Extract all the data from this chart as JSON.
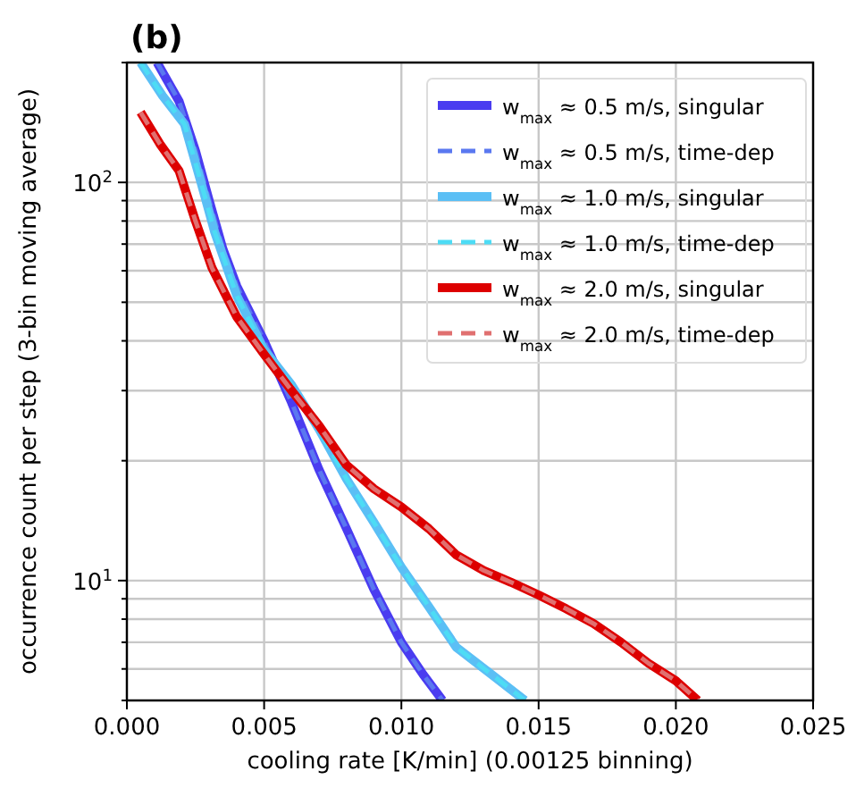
{
  "chart_data": {
    "type": "line",
    "title": "(b)",
    "xlabel": "cooling rate [K/min] (0.00125 binning)",
    "ylabel": "occurrence count per step (3-bin moving average)",
    "log": "y",
    "grid": true,
    "legend": "top right",
    "marker": "none",
    "xlim": [
      0,
      0.025
    ],
    "xticks": [
      {
        "value": 0,
        "label": "0.000"
      },
      {
        "value": 0.005,
        "label": "0.005"
      },
      {
        "value": 0.01,
        "label": "0.010"
      },
      {
        "value": 0.015,
        "label": "0.015"
      },
      {
        "value": 0.02,
        "label": "0.020"
      },
      {
        "value": 0.025,
        "label": "0.025"
      }
    ],
    "ylim": [
      5,
      200
    ],
    "yticks": [
      {
        "value": 5,
        "label": null
      },
      {
        "value": 6,
        "label": null
      },
      {
        "value": 7,
        "label": null
      },
      {
        "value": 8,
        "label": null
      },
      {
        "value": 9,
        "label": null
      },
      {
        "value": 10,
        "label": "10$^{1}$"
      },
      {
        "value": 20,
        "label": null
      },
      {
        "value": 30,
        "label": null
      },
      {
        "value": 40,
        "label": null
      },
      {
        "value": 50,
        "label": null
      },
      {
        "value": 60,
        "label": null
      },
      {
        "value": 70,
        "label": null
      },
      {
        "value": 80,
        "label": null
      },
      {
        "value": 90,
        "label": null
      },
      {
        "value": 100,
        "label": "10$^{2}$"
      },
      {
        "value": 200,
        "label": null
      }
    ],
    "series": [
      {
        "name": "w$_{max}$ ≈ 0.5 m/s, singular",
        "color": "#4a3cf0",
        "line_style": "solid",
        "x": [
          0.0011,
          0.0019,
          0.0025,
          0.003,
          0.0035,
          0.004,
          0.005,
          0.006,
          0.007,
          0.008,
          0.009,
          0.01,
          0.0108,
          0.0115
        ],
        "values": [
          200,
          160,
          120,
          90,
          68,
          55,
          40,
          28,
          19,
          13.5,
          9.5,
          7,
          5.8,
          5
        ]
      },
      {
        "name": "w$_{max}$ ≈ 0.5 m/s, time-dep",
        "color": "#5a78f0",
        "line_style": "dashed",
        "x": [
          0.0011,
          0.0019,
          0.0025,
          0.003,
          0.0035,
          0.004,
          0.005,
          0.006,
          0.007,
          0.008,
          0.009,
          0.01,
          0.0108,
          0.0115
        ],
        "values": [
          200,
          160,
          120,
          90,
          68,
          55,
          40,
          28,
          19,
          13.5,
          9.5,
          7,
          5.8,
          5
        ]
      },
      {
        "name": "w$_{max}$ ≈ 1.0 m/s, singular",
        "color": "#5bbff5",
        "line_style": "solid",
        "x": [
          0.0005,
          0.0013,
          0.0021,
          0.0027,
          0.0032,
          0.004,
          0.005,
          0.006,
          0.007,
          0.008,
          0.009,
          0.01,
          0.011,
          0.012,
          0.0133,
          0.0145
        ],
        "values": [
          200,
          165,
          140,
          100,
          75,
          52,
          38,
          31,
          24,
          18,
          14,
          10.8,
          8.6,
          6.8,
          5.8,
          5
        ]
      },
      {
        "name": "w$_{max}$ ≈ 1.0 m/s, time-dep",
        "color": "#4ddcf5",
        "line_style": "dashed",
        "x": [
          0.0005,
          0.0013,
          0.0021,
          0.0027,
          0.0032,
          0.004,
          0.005,
          0.006,
          0.007,
          0.008,
          0.009,
          0.01,
          0.011,
          0.012,
          0.0133,
          0.0145
        ],
        "values": [
          200,
          165,
          140,
          100,
          75,
          52,
          38,
          31,
          24,
          18,
          14,
          10.8,
          8.6,
          6.8,
          5.8,
          5
        ]
      },
      {
        "name": "w$_{max}$ ≈ 2.0 m/s, singular",
        "color": "#dd0000",
        "line_style": "solid",
        "x": [
          0.0005,
          0.0012,
          0.0019,
          0.0025,
          0.0031,
          0.004,
          0.005,
          0.006,
          0.007,
          0.008,
          0.009,
          0.01,
          0.011,
          0.012,
          0.013,
          0.014,
          0.015,
          0.016,
          0.017,
          0.018,
          0.019,
          0.02,
          0.0208
        ],
        "values": [
          150,
          125,
          107,
          80,
          61,
          46,
          37,
          30,
          24.5,
          19.5,
          17,
          15.3,
          13.5,
          11.6,
          10.6,
          9.9,
          9.2,
          8.5,
          7.8,
          7,
          6.2,
          5.6,
          5
        ]
      },
      {
        "name": "w$_{max}$ ≈ 2.0 m/s, time-dep",
        "color": "#e07070",
        "line_style": "dashed",
        "x": [
          0.0005,
          0.0012,
          0.0019,
          0.0025,
          0.0031,
          0.004,
          0.005,
          0.006,
          0.007,
          0.008,
          0.009,
          0.01,
          0.011,
          0.012,
          0.013,
          0.014,
          0.015,
          0.016,
          0.017,
          0.018,
          0.019,
          0.02,
          0.0208
        ],
        "values": [
          150,
          125,
          107,
          80,
          61,
          46,
          37,
          30,
          24.5,
          19.5,
          17,
          15.3,
          13.5,
          11.6,
          10.6,
          9.9,
          9.2,
          8.5,
          7.8,
          7,
          6.2,
          5.6,
          5
        ]
      }
    ]
  }
}
